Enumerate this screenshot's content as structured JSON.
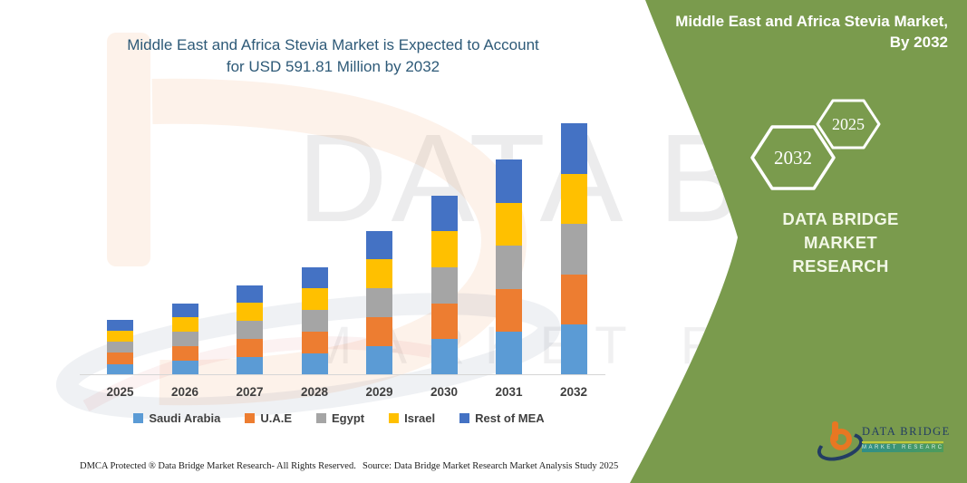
{
  "header": {
    "title_line1": "Middle East and Africa Stevia Market is Expected to Account",
    "title_line2": "for USD 591.81 Million by 2032"
  },
  "chart_data": {
    "type": "bar",
    "stacked": true,
    "title": "Middle East and Africa Stevia Market is Expected to Account for USD 591.81 Million by 2032",
    "unit": "USD Million",
    "categories": [
      "2025",
      "2026",
      "2027",
      "2028",
      "2029",
      "2030",
      "2031",
      "2032"
    ],
    "series": [
      {
        "name": "Saudi Arabia",
        "color": "#5B9BD5",
        "values": [
          26.1,
          33.8,
          42.3,
          50.9,
          67.9,
          84.6,
          101.3,
          118.4
        ]
      },
      {
        "name": "U.A.E",
        "color": "#ED7D31",
        "values": [
          26.1,
          33.8,
          42.3,
          50.9,
          67.9,
          84.6,
          101.3,
          118.4
        ]
      },
      {
        "name": "Egypt",
        "color": "#A5A5A5",
        "values": [
          26.1,
          33.8,
          42.3,
          50.9,
          67.9,
          84.6,
          101.3,
          118.4
        ]
      },
      {
        "name": "Israel",
        "color": "#FFC000",
        "values": [
          26.1,
          33.8,
          42.3,
          50.9,
          67.9,
          84.6,
          101.3,
          118.4
        ]
      },
      {
        "name": "Rest of MEA",
        "color": "#4472C4",
        "values": [
          26.1,
          33.8,
          42.3,
          50.9,
          67.9,
          84.6,
          101.3,
          118.4
        ]
      }
    ],
    "totals_by_year": [
      130.5,
      169.0,
      211.5,
      254.5,
      339.5,
      423.0,
      506.5,
      591.81
    ],
    "ylim": [
      0,
      600
    ],
    "grid": false,
    "legend_position": "bottom"
  },
  "side_panel": {
    "title_line1": "Middle East and Africa Stevia Market,",
    "title_line2": "By 2032",
    "hexagon_large": "2032",
    "hexagon_small": "2025",
    "brand_line1": "DATA BRIDGE MARKET",
    "brand_line2": "RESEARCH",
    "accent_green": "#7A9B4D"
  },
  "logo": {
    "name": "DATA BRIDGE",
    "banner": "MARKET RESEARCH"
  },
  "watermark": {
    "line1": "DATA BRIDGE",
    "line2": "MARKET RESEARCH"
  },
  "footer": {
    "left": "DMCA Protected ® Data Bridge Market Research-  All Rights Reserved.",
    "source": "Source: Data Bridge Market Research  Market Analysis Study 2025"
  }
}
